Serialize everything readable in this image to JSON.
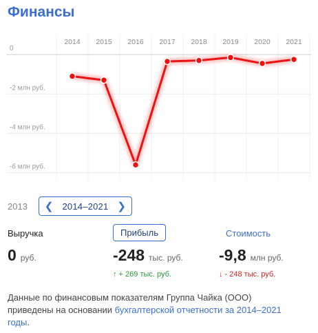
{
  "title": "Финансы",
  "chart_data": {
    "type": "line",
    "x": [
      "2014",
      "2015",
      "2016",
      "2017",
      "2018",
      "2019",
      "2020",
      "2021"
    ],
    "values": [
      -1.1,
      -1.3,
      -5.6,
      -0.35,
      -0.3,
      -0.15,
      -0.45,
      -0.25
    ],
    "y_ticks": [
      {
        "value": 0,
        "label": "0"
      },
      {
        "value": -2,
        "label": "-2 млн руб."
      },
      {
        "value": -4,
        "label": "-4 млн руб."
      },
      {
        "value": -6,
        "label": "-6 млн руб."
      }
    ],
    "ylim": [
      -6.4,
      0.25
    ],
    "grid": true,
    "color": "#ee1111"
  },
  "range": {
    "prev_year": "2013",
    "label": "2014–2021"
  },
  "metrics": {
    "revenue": {
      "label": "Выручка",
      "value": "0",
      "unit": "руб."
    },
    "profit": {
      "label": "Прибыль",
      "value": "-248",
      "unit": "тыс. руб.",
      "delta": "↑ + 269 тыс. руб."
    },
    "cost": {
      "label": "Стоимость",
      "value": "-9,8",
      "unit": "млн руб.",
      "delta": "↓ - 248 тыс. руб."
    }
  },
  "note": {
    "text": "Данные по финансовым показателям Группа Чайка (ООО) приведены на основании ",
    "link": "бухгалтерской отчетности за 2014–2021 годы",
    "end": "."
  }
}
